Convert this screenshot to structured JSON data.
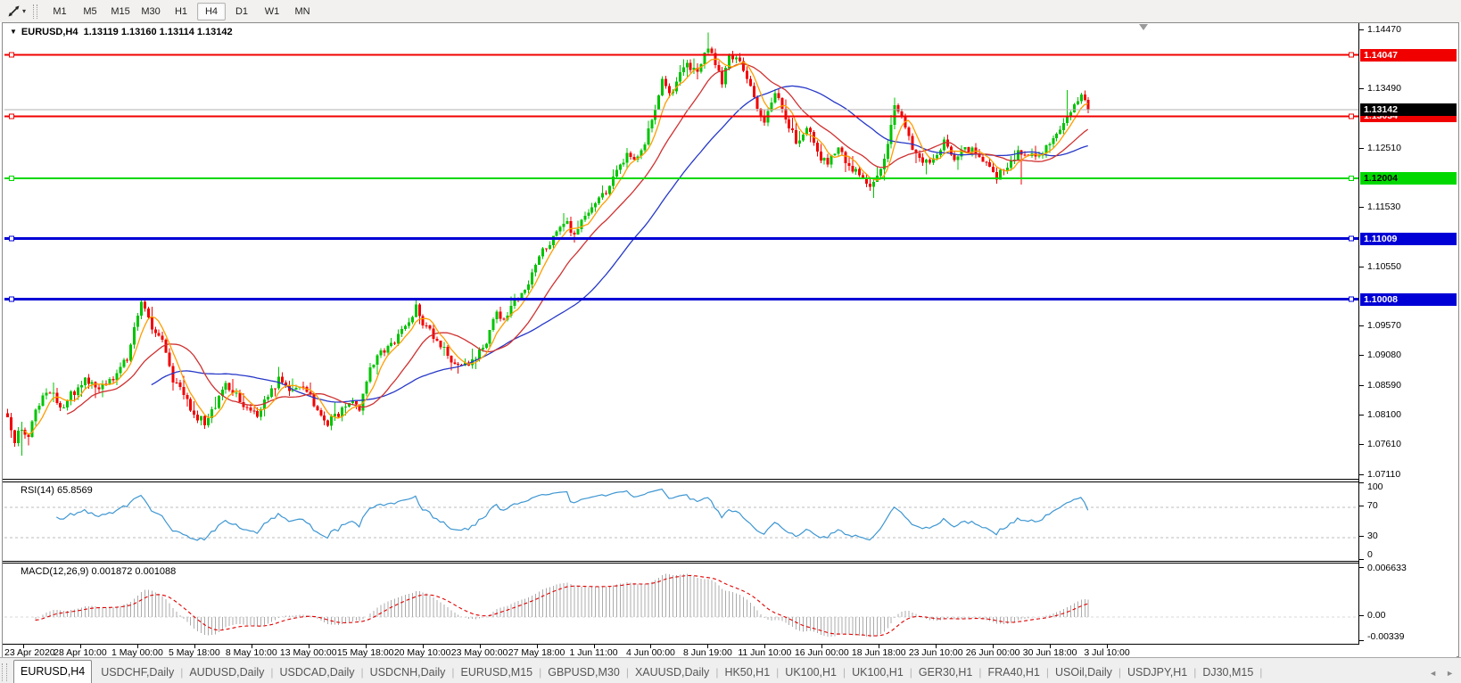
{
  "icons": {
    "toolbar_caret": "▾",
    "symbol_dropdown": "▼",
    "tab_scroll_left": "◄",
    "tab_scroll_right": "►"
  },
  "toolbar": {
    "timeframes": [
      "M1",
      "M5",
      "M15",
      "M30",
      "H1",
      "H4",
      "D1",
      "W1",
      "MN"
    ],
    "active_timeframe": "H4"
  },
  "chart": {
    "title_symbol": "EURUSD,H4",
    "title_ohlc": "1.13119 1.13160 1.13114 1.13142"
  },
  "chart_data": {
    "type": "candlestick",
    "symbol": "EURUSD",
    "timeframe": "H4",
    "ohlc_display": {
      "open": 1.13119,
      "high": 1.1316,
      "low": 1.13114,
      "close": 1.13142
    },
    "x_labels": [
      "23 Apr 2020",
      "28 Apr 10:00",
      "1 May 00:00",
      "5 May 18:00",
      "8 May 10:00",
      "13 May 00:00",
      "15 May 18:00",
      "20 May 10:00",
      "23 May 00:00",
      "27 May 18:00",
      "1 Jun 11:00",
      "4 Jun 00:00",
      "8 Jun 19:00",
      "11 Jun 10:00",
      "16 Jun 00:00",
      "18 Jun 18:00",
      "23 Jun 10:00",
      "26 Jun 00:00",
      "30 Jun 18:00",
      "3 Jul 10:00"
    ],
    "price_axis": {
      "tick_labels": [
        "1.14470",
        "1.13490",
        "1.12510",
        "1.11530",
        "1.10550",
        "1.09570",
        "1.09080",
        "1.08590",
        "1.08100",
        "1.07610",
        "1.07110"
      ],
      "tick_values": [
        1.1447,
        1.1349,
        1.1251,
        1.1153,
        1.1055,
        1.0957,
        1.0908,
        1.0859,
        1.081,
        1.0761,
        1.0711
      ],
      "top_price": 1.1447,
      "bottom_price": 1.0711
    },
    "current_price": {
      "value": 1.13142,
      "label": "1.13142",
      "line_color": "#b2b2b2",
      "badge_bg": "#000000",
      "badge_fg": "#ffffff"
    },
    "horizontal_lines": [
      {
        "price": 1.14047,
        "label": "1.14047",
        "color": "#f10000",
        "stroke": 2,
        "badge_fg": "#ffffff"
      },
      {
        "price": 1.13034,
        "label": "1.13034",
        "color": "#f10000",
        "stroke": 2,
        "badge_fg": "#ffffff"
      },
      {
        "price": 1.12004,
        "label": "1.12004",
        "color": "#00d800",
        "stroke": 2,
        "badge_fg": "#000000"
      },
      {
        "price": 1.11009,
        "label": "1.11009",
        "color": "#0000d6",
        "stroke": 3,
        "badge_fg": "#ffffff"
      },
      {
        "price": 1.10008,
        "label": "1.10008",
        "color": "#0000d6",
        "stroke": 3,
        "badge_fg": "#ffffff"
      }
    ],
    "candles": {
      "count": 308,
      "bull_color": "#00c400",
      "bear_color": "#f10000",
      "close_anchors": [
        [
          0,
          1.08
        ],
        [
          2,
          1.0768
        ],
        [
          4,
          1.0786
        ],
        [
          6,
          1.0775
        ],
        [
          8,
          1.0822
        ],
        [
          12,
          1.0852
        ],
        [
          15,
          1.082
        ],
        [
          18,
          1.0842
        ],
        [
          22,
          1.0868
        ],
        [
          26,
          1.0852
        ],
        [
          30,
          1.0872
        ],
        [
          34,
          1.0902
        ],
        [
          36,
          1.0952
        ],
        [
          38,
          1.1002
        ],
        [
          39,
          1.099
        ],
        [
          41,
          1.0952
        ],
        [
          44,
          1.0928
        ],
        [
          47,
          1.0868
        ],
        [
          50,
          1.0846
        ],
        [
          53,
          1.0808
        ],
        [
          56,
          1.0798
        ],
        [
          59,
          1.0826
        ],
        [
          62,
          1.086
        ],
        [
          65,
          1.0841
        ],
        [
          68,
          1.0818
        ],
        [
          71,
          1.081
        ],
        [
          74,
          1.0838
        ],
        [
          77,
          1.0866
        ],
        [
          80,
          1.0851
        ],
        [
          83,
          1.0858
        ],
        [
          86,
          1.0838
        ],
        [
          89,
          1.081
        ],
        [
          91,
          1.0796
        ],
        [
          94,
          1.0812
        ],
        [
          97,
          1.0828
        ],
        [
          100,
          1.0822
        ],
        [
          102,
          1.0868
        ],
        [
          105,
          1.0912
        ],
        [
          108,
          1.0921
        ],
        [
          111,
          1.0938
        ],
        [
          114,
          1.0968
        ],
        [
          116,
          1.0986
        ],
        [
          118,
          1.0956
        ],
        [
          121,
          1.0941
        ],
        [
          124,
          1.0916
        ],
        [
          127,
          1.0893
        ],
        [
          130,
          1.089
        ],
        [
          133,
          1.0903
        ],
        [
          136,
          1.0933
        ],
        [
          139,
          1.0976
        ],
        [
          141,
          1.0963
        ],
        [
          144,
          1.0996
        ],
        [
          147,
          1.1011
        ],
        [
          150,
          1.1058
        ],
        [
          153,
          1.1089
        ],
        [
          156,
          1.1109
        ],
        [
          159,
          1.1129
        ],
        [
          161,
          1.1103
        ],
        [
          164,
          1.1141
        ],
        [
          167,
          1.1161
        ],
        [
          170,
          1.1179
        ],
        [
          173,
          1.1209
        ],
        [
          176,
          1.1241
        ],
        [
          178,
          1.1229
        ],
        [
          181,
          1.1263
        ],
        [
          184,
          1.1321
        ],
        [
          186,
          1.1361
        ],
        [
          188,
          1.1336
        ],
        [
          190,
          1.1366
        ],
        [
          193,
          1.1391
        ],
        [
          196,
          1.1376
        ],
        [
          199,
          1.1416
        ],
        [
          201,
          1.1391
        ],
        [
          203,
          1.1361
        ],
        [
          205,
          1.1399
        ],
        [
          207,
          1.1406
        ],
        [
          209,
          1.1379
        ],
        [
          212,
          1.1331
        ],
        [
          215,
          1.1296
        ],
        [
          218,
          1.1341
        ],
        [
          221,
          1.1301
        ],
        [
          224,
          1.1261
        ],
        [
          227,
          1.1286
        ],
        [
          230,
          1.1241
        ],
        [
          233,
          1.1226
        ],
        [
          236,
          1.1251
        ],
        [
          239,
          1.1221
        ],
        [
          242,
          1.1206
        ],
        [
          245,
          1.1181
        ],
        [
          248,
          1.1213
        ],
        [
          250,
          1.1261
        ],
        [
          252,
          1.1321
        ],
        [
          254,
          1.1301
        ],
        [
          257,
          1.1253
        ],
        [
          260,
          1.1223
        ],
        [
          263,
          1.1231
        ],
        [
          266,
          1.1261
        ],
        [
          269,
          1.1236
        ],
        [
          272,
          1.1253
        ],
        [
          275,
          1.1241
        ],
        [
          278,
          1.1223
        ],
        [
          281,
          1.1203
        ],
        [
          284,
          1.1223
        ],
        [
          287,
          1.1246
        ],
        [
          290,
          1.1236
        ],
        [
          293,
          1.1241
        ],
        [
          296,
          1.1259
        ],
        [
          299,
          1.1283
        ],
        [
          302,
          1.1311
        ],
        [
          305,
          1.1336
        ],
        [
          307,
          1.13142
        ]
      ],
      "forced_wicks": [
        [
          4,
          "low",
          1.0742
        ],
        [
          199,
          "high",
          1.1442
        ],
        [
          246,
          "low",
          1.1168
        ],
        [
          288,
          "low",
          1.119
        ],
        [
          301,
          "high",
          1.1347
        ]
      ]
    },
    "moving_averages": [
      {
        "period": 6,
        "color": "#ff9d00"
      },
      {
        "period": 18,
        "color": "#d03030"
      },
      {
        "period": 42,
        "color": "#2638c8"
      }
    ],
    "rsi": {
      "label": "RSI(14) 65.8569",
      "period": 14,
      "value": 65.8569,
      "levels": [
        70,
        30
      ],
      "axis_labels": [
        "100",
        "70",
        "30",
        "0"
      ],
      "axis_values": [
        100,
        70,
        30,
        0
      ],
      "range": [
        0,
        100
      ],
      "color": "#3d96d2"
    },
    "macd": {
      "label": "MACD(12,26,9) 0.001872 0.001088",
      "fast": 12,
      "slow": 26,
      "signal_period": 9,
      "macd_value": 0.001872,
      "signal_value": 0.001088,
      "axis_labels": [
        "0.006633",
        "0.00",
        "-0.00339"
      ],
      "axis_values": [
        0.006633,
        0,
        -0.00339
      ],
      "hist_color": "#ababab",
      "signal_color": "#e00000"
    }
  },
  "tabs": {
    "items": [
      "EURUSD,H4",
      "USDCHF,Daily",
      "AUDUSD,Daily",
      "USDCAD,Daily",
      "USDCNH,Daily",
      "EURUSD,M15",
      "GBPUSD,M30",
      "XAUUSD,Daily",
      "HK50,H1",
      "UK100,H1",
      "UK100,H1",
      "GER30,H1",
      "FRA40,H1",
      "USOil,Daily",
      "USDJPY,H1",
      "DJ30,M15"
    ],
    "active_index": 0
  }
}
